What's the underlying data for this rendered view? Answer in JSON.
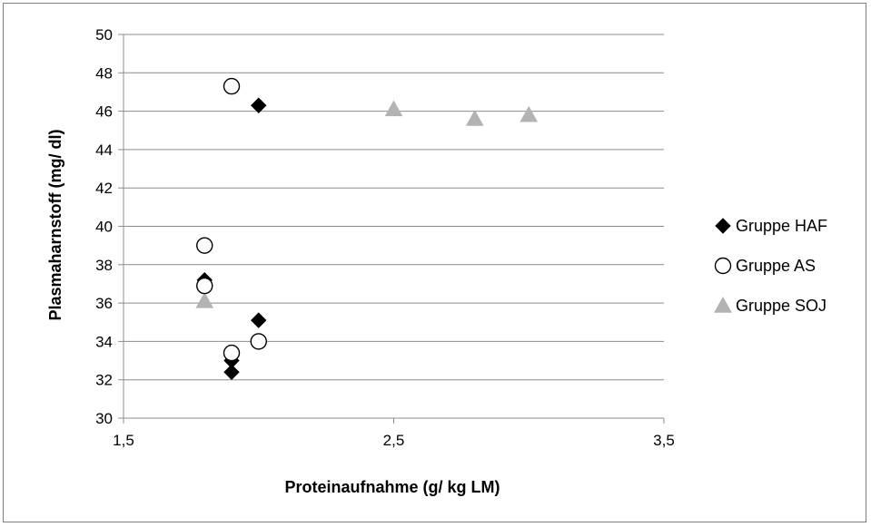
{
  "chart_data": {
    "type": "scatter",
    "title": "",
    "xlabel": "Proteinaufnahme (g/ kg LM)",
    "ylabel": "Plasmaharnstoff (mg/ dl)",
    "xlim": [
      1.5,
      3.5
    ],
    "ylim": [
      30,
      50
    ],
    "x_ticks": [
      "1,5",
      "2,5",
      "3,5"
    ],
    "x_tick_values": [
      1.5,
      2.5,
      3.5
    ],
    "y_ticks": [
      "30",
      "32",
      "34",
      "36",
      "38",
      "40",
      "42",
      "44",
      "46",
      "48",
      "50"
    ],
    "y_tick_values": [
      30,
      32,
      34,
      36,
      38,
      40,
      42,
      44,
      46,
      48,
      50
    ],
    "grid": "horizontal",
    "legend_position": "right",
    "series": [
      {
        "name": "Gruppe HAF",
        "marker": "diamond",
        "color": "#000000",
        "points": [
          {
            "x": 2.0,
            "y": 46.3
          },
          {
            "x": 1.8,
            "y": 37.2
          },
          {
            "x": 2.0,
            "y": 35.1
          },
          {
            "x": 1.9,
            "y": 33.0
          },
          {
            "x": 1.9,
            "y": 32.4
          }
        ]
      },
      {
        "name": "Gruppe AS",
        "marker": "circle-open",
        "color": "#000000",
        "points": [
          {
            "x": 1.9,
            "y": 47.3
          },
          {
            "x": 1.8,
            "y": 39.0
          },
          {
            "x": 1.8,
            "y": 36.9
          },
          {
            "x": 2.0,
            "y": 34.0
          },
          {
            "x": 1.9,
            "y": 33.4
          }
        ]
      },
      {
        "name": "Gruppe SOJ",
        "marker": "triangle",
        "color": "#b3b3b3",
        "points": [
          {
            "x": 2.5,
            "y": 46.1
          },
          {
            "x": 2.8,
            "y": 45.6
          },
          {
            "x": 3.0,
            "y": 45.8
          },
          {
            "x": 1.8,
            "y": 36.1
          }
        ]
      }
    ]
  }
}
